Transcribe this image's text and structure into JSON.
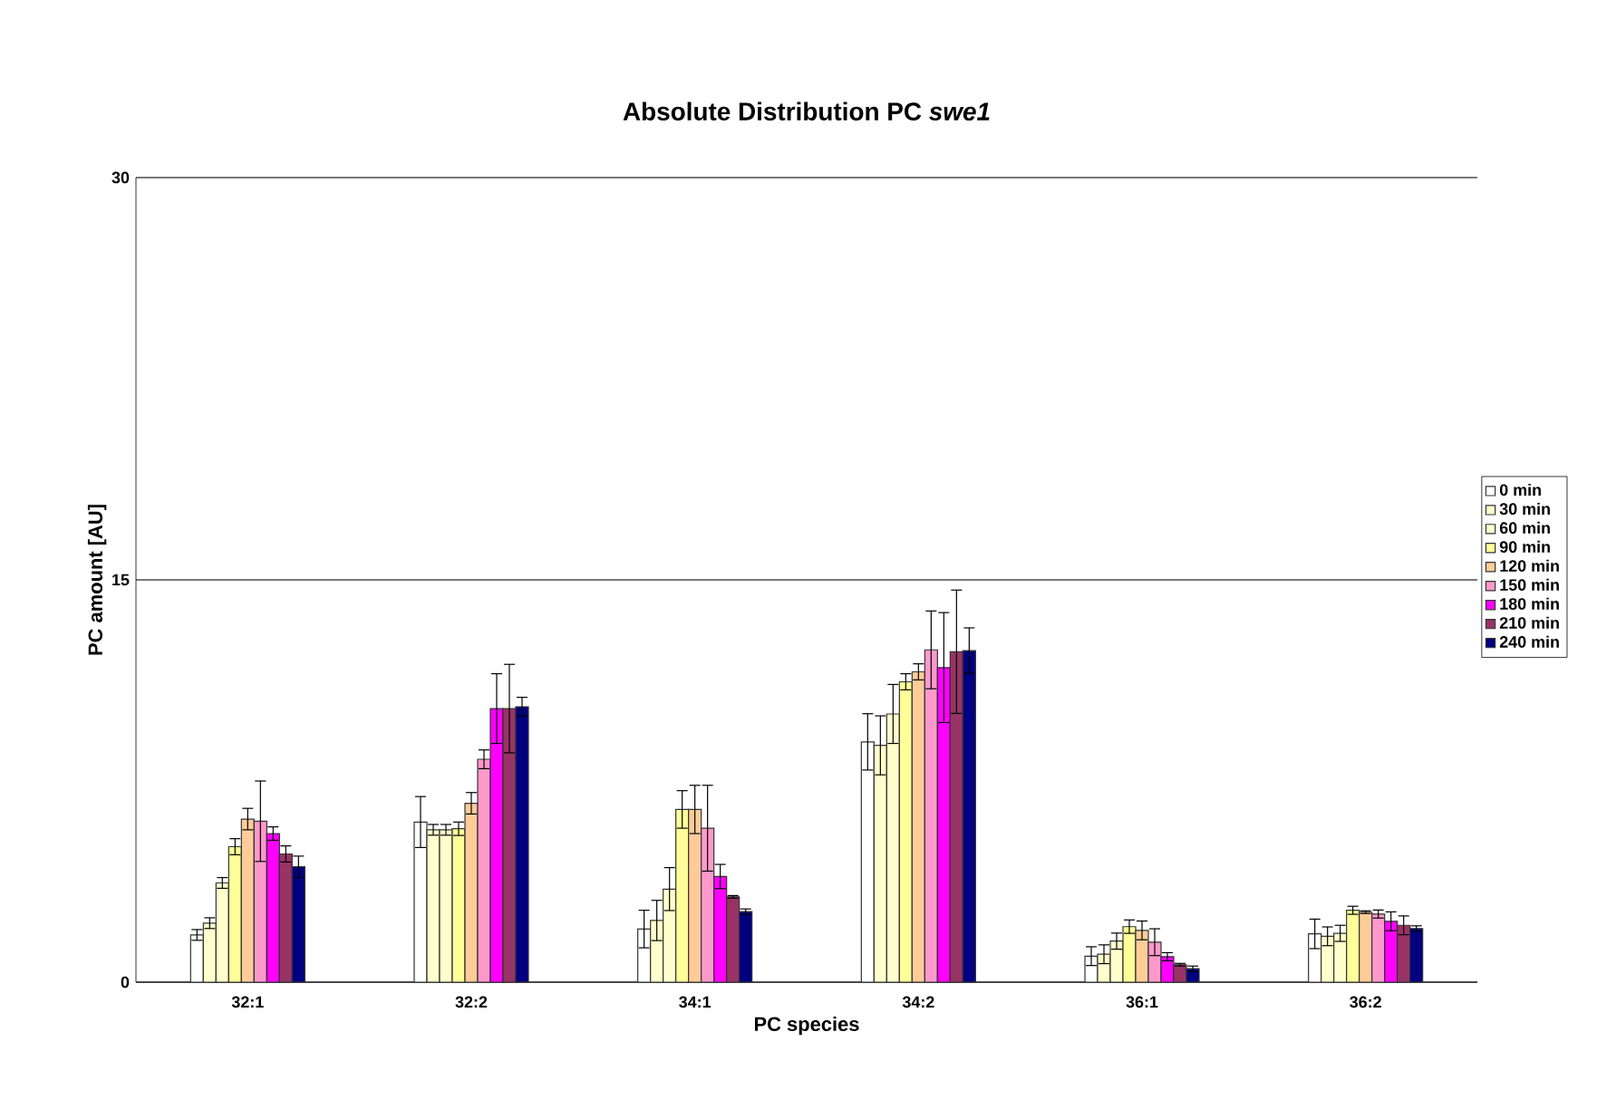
{
  "chart_data": {
    "type": "bar",
    "title": "Absolute Distribution PC *swe1*",
    "xlabel": "PC species",
    "ylabel": "PC amount [AU]",
    "categories": [
      "32:1",
      "32:2",
      "34:1",
      "34:2",
      "36:1",
      "36:2"
    ],
    "ylim": [
      0,
      30
    ],
    "yticks": [
      0,
      15,
      30
    ],
    "grid": "y",
    "legend": "right",
    "series": [
      {
        "name": "0 min",
        "color": "#ffffff",
        "values": [
          1.76,
          5.97,
          1.98,
          8.96,
          0.97,
          1.8
        ],
        "errors": [
          0.2,
          0.95,
          0.7,
          1.05,
          0.35,
          0.55
        ]
      },
      {
        "name": "30 min",
        "color": "#ffffcc",
        "values": [
          2.2,
          5.68,
          2.3,
          8.83,
          1.04,
          1.71
        ],
        "errors": [
          0.2,
          0.2,
          0.75,
          1.1,
          0.35,
          0.35
        ]
      },
      {
        "name": "60 min",
        "color": "#ffffcc",
        "values": [
          3.7,
          5.68,
          3.47,
          10.0,
          1.53,
          1.82
        ],
        "errors": [
          0.2,
          0.2,
          0.8,
          1.1,
          0.3,
          0.3
        ]
      },
      {
        "name": "90 min",
        "color": "#ffff99",
        "values": [
          5.05,
          5.72,
          6.44,
          11.2,
          2.07,
          2.68
        ],
        "errors": [
          0.3,
          0.25,
          0.7,
          0.3,
          0.25,
          0.15
        ]
      },
      {
        "name": "120 min",
        "color": "#ffcc99",
        "values": [
          6.08,
          6.67,
          6.44,
          11.57,
          1.93,
          2.61
        ],
        "errors": [
          0.4,
          0.4,
          0.9,
          0.3,
          0.35,
          0.05
        ]
      },
      {
        "name": "150 min",
        "color": "#ff99cc",
        "values": [
          6.0,
          8.31,
          5.74,
          12.39,
          1.49,
          2.54
        ],
        "errors": [
          1.5,
          0.35,
          1.6,
          1.45,
          0.5,
          0.15
        ]
      },
      {
        "name": "180 min",
        "color": "#ff00ff",
        "values": [
          5.54,
          10.2,
          3.94,
          11.73,
          0.95,
          2.27
        ],
        "errors": [
          0.25,
          1.3,
          0.45,
          2.05,
          0.15,
          0.35
        ]
      },
      {
        "name": "210 min",
        "color": "#993366",
        "values": [
          4.78,
          10.2,
          3.18,
          12.32,
          0.65,
          2.12
        ],
        "errors": [
          0.3,
          1.65,
          0.05,
          2.3,
          0.05,
          0.35
        ]
      },
      {
        "name": "240 min",
        "color": "#000080",
        "values": [
          4.3,
          10.27,
          2.63,
          12.36,
          0.5,
          2.0
        ],
        "errors": [
          0.4,
          0.35,
          0.1,
          0.85,
          0.1,
          0.1
        ]
      }
    ]
  }
}
